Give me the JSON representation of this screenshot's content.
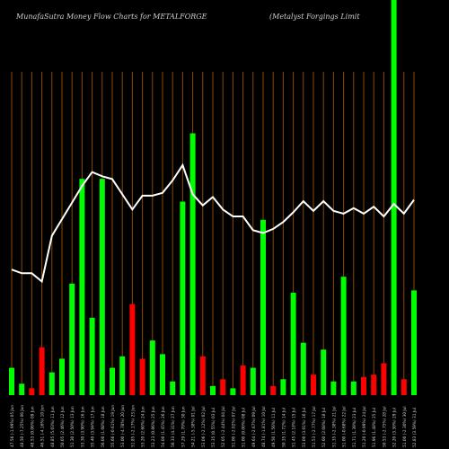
{
  "chart_data": {
    "type": "bar",
    "title": "MunafaSutra  Money Flow  Charts for METALFORGE",
    "subtitle": "(Metalyst Forgings Limit",
    "colors": {
      "background": "#000000",
      "up": "#00ff00",
      "down": "#ff0000",
      "line": "#ffffff",
      "grid": "#8b4a00",
      "text": "#cfcfcf"
    },
    "categories": [
      "47.56 (-1.99%) 05 Jun",
      "48.50 (-7.25%) 06 Jun",
      "48.53 (0.06%) 09 Jun",
      "46.51 (-4.16%) 10 Jun",
      "48.85 (5.03%) 11 Jun",
      "50.05 (2.46%) 12 Jun",
      "51.30 (2.50%) 13 Jun",
      "53.30 (3.90%) 16 Jun",
      "55.40 (3.94%) 17 Jun",
      "56.00 (1.08%) 18 Jun",
      "55.66 (-0.61%) 19 Jun",
      "53.00 (-4.78%) 20 Jun",
      "51.85 (-2.17%) 23 Jun",
      "53.20 (2.60%) 24 Jun",
      "53.23 (0.06%) 25 Jun",
      "54.00 (1.45%) 26 Jun",
      "56.33 (4.31%) 27 Jun",
      "57.29 (1.70%) 30 Jun",
      "54.21 (-5.38%) 01 Jul",
      "53.06 (-2.12%) 02 Jul",
      "53.35 (0.55%) 03 Jul",
      "52.05 (-2.44%) 04 Jul",
      "51.00 (-2.02%) 07 Jul",
      "51.00 (0.00%) 08 Jul",
      "49.64 (-2.67%) 09 Jul",
      "48.74 (-1.81%) 10 Jul",
      "49.50 (1.56%) 11 Jul",
      "50.35 (1.72%) 14 Jul",
      "51.45 (2.18%) 15 Jul",
      "53.00 (3.01%) 16 Jul",
      "51.53 (-2.77%) 17 Jul",
      "52.60 (2.08%) 18 Jul",
      "51.35 (-2.38%) 21 Jul",
      "51.00 (-0.68%) 22 Jul",
      "51.71 (1.39%) 23 Jul",
      "51.20 (-0.99%) 24 Jul",
      "51.96 (1.48%) 25 Jul",
      "50.53 (-2.75%) 28 Jul",
      "52.20 (3.30%) 29 Jul",
      "51.00 (-2.30%) 30 Jul",
      "52.83 (3.59%) 31 Jul"
    ],
    "volume": {
      "values": [
        12,
        5,
        3,
        21,
        10,
        16,
        49,
        95,
        34,
        95,
        12,
        17,
        40,
        16,
        24,
        18,
        6,
        85,
        115,
        17,
        4,
        7,
        3,
        13,
        12,
        77,
        4,
        7,
        45,
        23,
        9,
        20,
        6,
        52,
        6,
        8,
        9,
        14,
        180,
        7,
        46
      ],
      "direction": [
        "up",
        "up",
        "down",
        "down",
        "up",
        "up",
        "up",
        "up",
        "up",
        "up",
        "up",
        "up",
        "down",
        "down",
        "up",
        "up",
        "up",
        "up",
        "up",
        "down",
        "up",
        "down",
        "up",
        "down",
        "up",
        "up",
        "down",
        "up",
        "up",
        "up",
        "down",
        "up",
        "up",
        "up",
        "up",
        "down",
        "down",
        "down",
        "up",
        "down",
        "up"
      ]
    },
    "price_line": [
      47.56,
      47.3,
      47.3,
      46.7,
      50.0,
      51.2,
      52.4,
      53.6,
      54.6,
      54.3,
      54.1,
      53.0,
      51.9,
      52.9,
      52.9,
      53.1,
      54.0,
      55.1,
      53.0,
      52.2,
      52.8,
      51.9,
      51.4,
      51.4,
      50.4,
      50.2,
      50.5,
      51.0,
      51.7,
      52.5,
      51.8,
      52.5,
      51.8,
      51.6,
      52.0,
      51.6,
      52.1,
      51.4,
      52.3,
      51.6,
      52.6
    ],
    "ylim_price": [
      38.5,
      57.3
    ]
  }
}
